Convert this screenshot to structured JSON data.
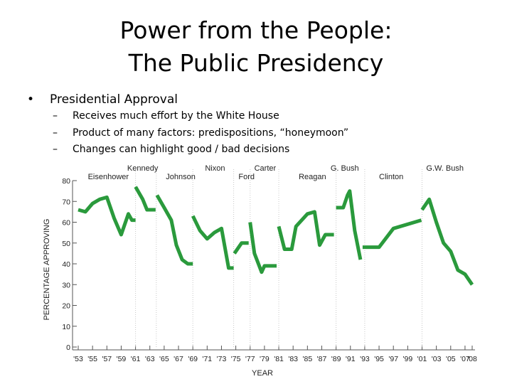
{
  "slide": {
    "title_line1": "Power from the People:",
    "title_line2": "The Public Presidency",
    "bullet_symbol": "•",
    "bullet": "Presidential Approval",
    "sub_dash": "–",
    "sub_items": [
      "Receives much effort by the White House",
      "Product of many factors: predispositions, “honeymoon”",
      "Changes can highlight good / bad decisions"
    ]
  },
  "chart_data": {
    "type": "line",
    "title": "",
    "xlabel": "YEAR",
    "ylabel": "PERCENTAGE APPROVING",
    "xlim": [
      1953,
      2008
    ],
    "ylim": [
      0,
      80
    ],
    "y_ticks": [
      0,
      10,
      20,
      30,
      40,
      50,
      60,
      70,
      80
    ],
    "x_ticks": [
      1953,
      1955,
      1957,
      1959,
      1961,
      1963,
      1965,
      1967,
      1969,
      1971,
      1973,
      1975,
      1977,
      1979,
      1981,
      1983,
      1985,
      1987,
      1989,
      1991,
      1993,
      1995,
      1997,
      1999,
      2001,
      2003,
      2005,
      2007,
      2008
    ],
    "x_tick_labels": [
      "'53",
      "'55",
      "'57",
      "'59",
      "'61",
      "'63",
      "'65",
      "'67",
      "'69",
      "'71",
      "'73",
      "'75",
      "'77",
      "'79",
      "'81",
      "'83",
      "'85",
      "'87",
      "'89",
      "'91",
      "'93",
      "'95",
      "'97",
      "'99",
      "'01",
      "'03",
      "'05",
      "'07",
      "'08"
    ],
    "color": "#2a9a3c",
    "series": [
      {
        "name": "Eisenhower",
        "points": [
          [
            1953,
            66
          ],
          [
            1954,
            65
          ],
          [
            1955,
            69
          ],
          [
            1956,
            71
          ],
          [
            1957,
            72
          ],
          [
            1958,
            62
          ],
          [
            1959,
            54
          ],
          [
            1960,
            64
          ],
          [
            1960.5,
            61
          ],
          [
            1961,
            61
          ]
        ]
      },
      {
        "name": "Kennedy",
        "points": [
          [
            1961,
            77
          ],
          [
            1962,
            71
          ],
          [
            1962.6,
            66
          ],
          [
            1963.8,
            66
          ]
        ]
      },
      {
        "name": "Johnson",
        "points": [
          [
            1964,
            73
          ],
          [
            1965,
            67
          ],
          [
            1966,
            61
          ],
          [
            1966.7,
            49
          ],
          [
            1967.5,
            42
          ],
          [
            1968.3,
            40
          ],
          [
            1969,
            40
          ]
        ]
      },
      {
        "name": "Nixon",
        "points": [
          [
            1969,
            63
          ],
          [
            1970,
            56
          ],
          [
            1971,
            52
          ],
          [
            1972,
            55
          ],
          [
            1973,
            57
          ],
          [
            1974,
            38
          ],
          [
            1974.7,
            38
          ]
        ]
      },
      {
        "name": "Ford",
        "points": [
          [
            1974.8,
            45
          ],
          [
            1975.8,
            50
          ],
          [
            1976.8,
            50
          ]
        ]
      },
      {
        "name": "Carter",
        "points": [
          [
            1977,
            60
          ],
          [
            1977.6,
            45
          ],
          [
            1978.6,
            36
          ],
          [
            1979,
            39
          ],
          [
            1980.7,
            39
          ]
        ]
      },
      {
        "name": "Reagan",
        "points": [
          [
            1981,
            58
          ],
          [
            1981.8,
            47
          ],
          [
            1982.8,
            47
          ],
          [
            1983.4,
            58
          ],
          [
            1984.2,
            61
          ],
          [
            1985,
            64
          ],
          [
            1986,
            65
          ],
          [
            1986.7,
            49
          ],
          [
            1987.5,
            54
          ],
          [
            1988.7,
            54
          ]
        ]
      },
      {
        "name": "G. Bush",
        "points": [
          [
            1989,
            67
          ],
          [
            1990,
            67
          ],
          [
            1990.6,
            73
          ],
          [
            1990.9,
            75
          ],
          [
            1991.6,
            56
          ],
          [
            1992.4,
            42
          ]
        ]
      },
      {
        "name": "Clinton",
        "points": [
          [
            1992.7,
            48
          ],
          [
            1993.7,
            48
          ],
          [
            1995,
            48
          ],
          [
            1997,
            57
          ],
          [
            2000.9,
            61
          ]
        ]
      },
      {
        "name": "G.W. Bush",
        "points": [
          [
            2001,
            66
          ],
          [
            2002,
            71
          ],
          [
            2003,
            60
          ],
          [
            2004,
            50
          ],
          [
            2005,
            46
          ],
          [
            2006,
            37
          ],
          [
            2007,
            35
          ],
          [
            2008,
            30
          ]
        ]
      }
    ],
    "annotations": [
      {
        "text": "Eisenhower",
        "year": 1957.2,
        "level": 2
      },
      {
        "text": "Kennedy",
        "year": 1962.0,
        "level": 1
      },
      {
        "text": "Johnson",
        "year": 1967.3,
        "level": 2
      },
      {
        "text": "Nixon",
        "year": 1972.1,
        "level": 1
      },
      {
        "text": "Ford",
        "year": 1976.5,
        "level": 2
      },
      {
        "text": "Carter",
        "year": 1979.1,
        "level": 1
      },
      {
        "text": "Reagan",
        "year": 1985.7,
        "level": 2
      },
      {
        "text": "G. Bush",
        "year": 1990.2,
        "level": 1
      },
      {
        "text": "Clinton",
        "year": 1996.7,
        "level": 2
      },
      {
        "text": "G.W. Bush",
        "year": 2004.2,
        "level": 1
      }
    ]
  }
}
